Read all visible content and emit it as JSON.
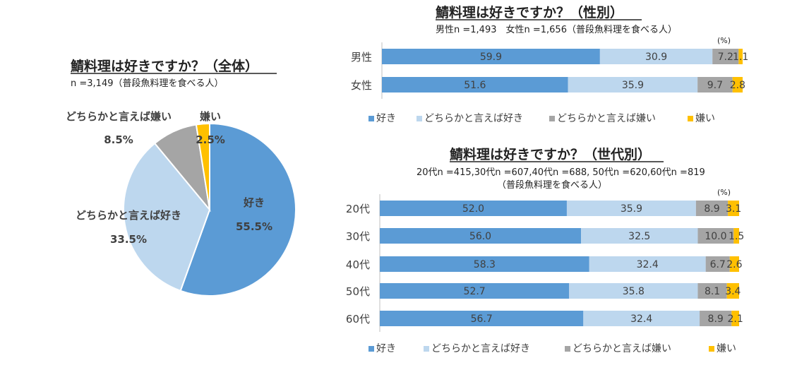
{
  "colors": {
    "like": "#5b9bd5",
    "somewhat_like": "#bdd7ee",
    "somewhat_dislike": "#a5a5a5",
    "dislike": "#ffc000"
  },
  "chart_data": [
    {
      "type": "pie",
      "title": "鯖料理は好きですか？（全体）",
      "subtitle": "n =3,149（普段魚料理を食べる人）",
      "slices": [
        {
          "label": "好き",
          "value": 55.5,
          "display": "55.5%"
        },
        {
          "label": "どちらかと言えば好き",
          "value": 33.5,
          "display": "33.5%"
        },
        {
          "label": "どちらかと言えば嫌い",
          "value": 8.5,
          "display": "8.5%"
        },
        {
          "label": "嫌い",
          "value": 2.5,
          "display": "2.5%"
        }
      ]
    },
    {
      "type": "bar",
      "stacked": true,
      "orientation": "horizontal",
      "title": "鯖料理は好きですか？（性別）",
      "subtitle": "男性n =1,493　女性n =1,656（普段魚料理を食べる人）",
      "unit_label": "(%)",
      "categories": [
        "男性",
        "女性"
      ],
      "series": [
        {
          "name": "好き",
          "values": [
            59.9,
            51.6
          ]
        },
        {
          "name": "どちらかと言えば好き",
          "values": [
            30.9,
            35.9
          ]
        },
        {
          "name": "どちらかと言えば嫌い",
          "values": [
            7.2,
            9.7
          ]
        },
        {
          "name": "嫌い",
          "values": [
            1.1,
            2.8
          ]
        }
      ],
      "legend": "bottom"
    },
    {
      "type": "bar",
      "stacked": true,
      "orientation": "horizontal",
      "title": "鯖料理は好きですか？（世代別）",
      "subtitle": "20代n =415,30代n =607,40代n =688, 50代n =620,60代n =819",
      "subtitle2": "（普段魚料理を食べる人）",
      "unit_label": "(%)",
      "categories": [
        "20代",
        "30代",
        "40代",
        "50代",
        "60代"
      ],
      "series": [
        {
          "name": "好き",
          "values": [
            52.0,
            56.0,
            58.3,
            52.7,
            56.7
          ]
        },
        {
          "name": "どちらかと言えば好き",
          "values": [
            35.9,
            32.5,
            32.4,
            35.8,
            32.4
          ]
        },
        {
          "name": "どちらかと言えば嫌い",
          "values": [
            8.9,
            10.0,
            6.7,
            8.1,
            8.9
          ]
        },
        {
          "name": "嫌い",
          "values": [
            3.1,
            1.5,
            2.6,
            3.4,
            2.1
          ]
        }
      ],
      "legend": "bottom"
    }
  ]
}
